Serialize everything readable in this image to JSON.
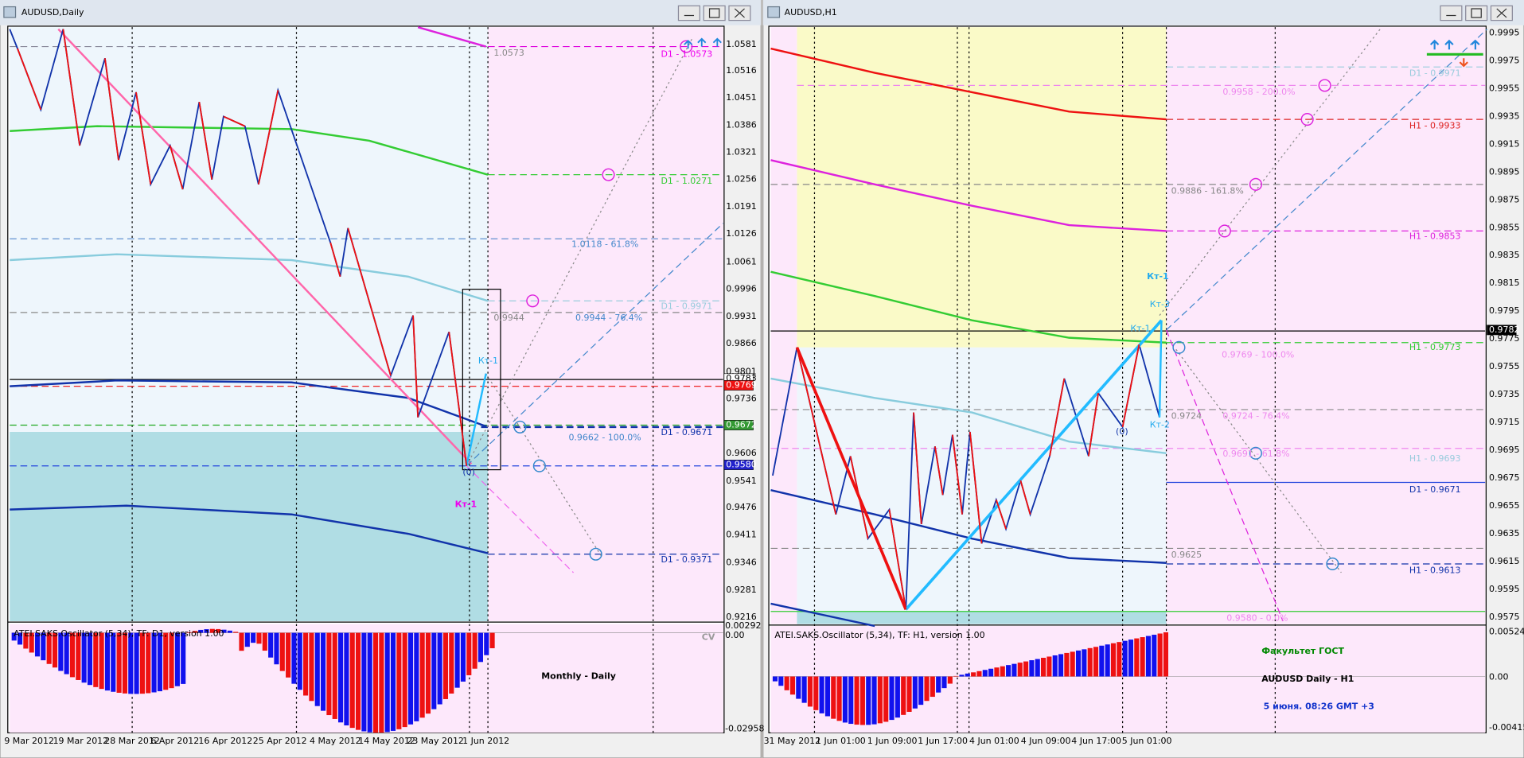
{
  "windows": [
    {
      "title": "AUDUSD,Daily",
      "price_axis": [
        "1.0581",
        "1.0516",
        "1.0451",
        "1.0386",
        "1.0321",
        "1.0256",
        "1.0191",
        "1.0126",
        "1.0061",
        "0.9996",
        "0.9931",
        "0.9866",
        "0.9801",
        "0.9736",
        "0.9606",
        "0.9541",
        "0.9476",
        "0.9411",
        "0.9346",
        "0.9281",
        "0.9216"
      ],
      "price_boxes": [
        "0.9783",
        "0.9769",
        "0.9672",
        "0.9580"
      ],
      "time_axis": [
        "9 Mar 2012",
        "19 Mar 2012",
        "28 Mar 2012",
        "6 Apr 2012",
        "16 Apr 2012",
        "25 Apr 2012",
        "4 May 2012",
        "14 May 2012",
        "23 May 2012",
        "1 Jun 2012"
      ],
      "labels": [
        "1.0573",
        "D1 - 1.0573",
        "D1 - 1.0271",
        "1.0118 - 61.8%",
        "D1 - 0.9971",
        "0.9944",
        "0.9944 - 76.4%",
        "Кт-1",
        "D1 - 0.9671",
        "0.9662 - 100.0%",
        "(0)",
        "Кт-1",
        "D1 - 0.9371"
      ],
      "oscillator": {
        "title": "ATEI.SAKS.Oscillator (5,34), TF: D1, version 1.00",
        "axis": [
          "0.00292",
          "0.00",
          "-0.02958"
        ]
      },
      "notes": [
        "CV",
        "Monthly - Daily"
      ]
    },
    {
      "title": "AUDUSD,H1",
      "price_axis": [
        "0.9995",
        "0.9975",
        "0.9955",
        "0.9935",
        "0.9915",
        "0.9895",
        "0.9875",
        "0.9855",
        "0.9835",
        "0.9815",
        "0.9795",
        "0.9775",
        "0.9755",
        "0.9735",
        "0.9715",
        "0.9695",
        "0.9675",
        "0.9655",
        "0.9635",
        "0.9615",
        "0.9595",
        "0.9575"
      ],
      "price_boxes": [
        "0.9782"
      ],
      "time_axis": [
        "31 May 2012",
        "1 Jun 01:00",
        "1 Jun 09:00",
        "1 Jun 17:00",
        "4 Jun 01:00",
        "4 Jun 09:00",
        "4 Jun 17:00",
        "5 Jun 01:00"
      ],
      "labels": [
        "D1 - 0.9971",
        "0.9958 - 200.0%",
        "H1 - 0.9933",
        "0.9886 - 161.8%",
        "H1 - 0.9853",
        "Кт-1",
        "Кт-3",
        "Кт-1",
        "H1 - 0.9773",
        "0.9769 - 100.0%",
        "0.9724",
        "0.9724 - 76.4%",
        "Кт-2",
        "(0)",
        "0.9691 - 61.8%",
        "H1 - 0.9693",
        "D1 - 0.9671",
        "0.9625",
        "H1 - 0.9613",
        "0.9580 - 0.0%"
      ],
      "oscillator": {
        "title": "ATEI.SAKS.Oscillator (5,34), TF: H1, version 1.00",
        "axis": [
          "0.00524",
          "0.00",
          "-0.00415"
        ]
      },
      "notes": [
        "Факультет ГОСТ",
        "AUDUSD Daily - H1",
        "5 июня. 08:26 GMT +3"
      ]
    }
  ]
}
